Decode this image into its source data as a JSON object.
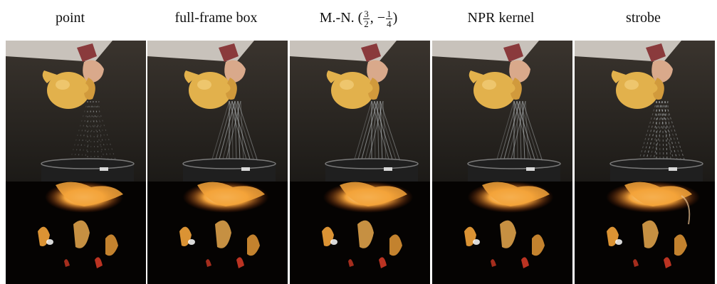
{
  "columns": [
    {
      "id": "point",
      "label": "point"
    },
    {
      "id": "full-frame-box",
      "label": "full-frame box"
    },
    {
      "id": "mn",
      "label_prefix": "M.-N. (",
      "frac1": {
        "num": "3",
        "den": "2"
      },
      "separator": ", −",
      "frac2": {
        "num": "1",
        "den": "4"
      },
      "label_suffix": ")"
    },
    {
      "id": "npr-kernel",
      "label": "NPR kernel"
    },
    {
      "id": "strobe",
      "label": "strobe"
    }
  ],
  "rows": [
    {
      "id": "pitcher",
      "subject": "pitcher-pouring-water"
    },
    {
      "id": "fire",
      "subject": "fire-flames"
    }
  ],
  "colors": {
    "background": "#ffffff",
    "pitcher_bg": "#2a2622",
    "pitcher_body": "#e2b14c",
    "sleeve": "#c8c2bb",
    "fire_bg": "#050302",
    "flame": "#f3a33a"
  }
}
